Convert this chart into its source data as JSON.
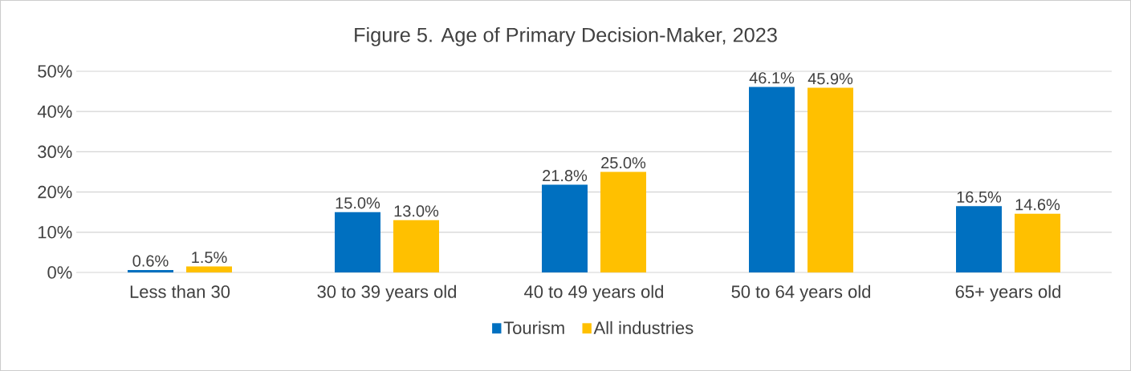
{
  "chart_data": {
    "type": "bar",
    "title": "Figure 5. Age of Primary Decision-Maker, 2023",
    "categories": [
      "Less than 30",
      "30 to 39 years old",
      "40 to 49 years old",
      "50 to 64 years old",
      "65+ years old"
    ],
    "series": [
      {
        "name": "Tourism",
        "color": "#0070c0",
        "values": [
          0.6,
          15.0,
          21.8,
          46.1,
          16.5
        ],
        "value_labels": [
          "0.6%",
          "15.0%",
          "21.8%",
          "46.1%",
          "16.5%"
        ]
      },
      {
        "name": "All industries",
        "color": "#ffc000",
        "values": [
          1.5,
          13.0,
          25.0,
          45.9,
          14.6
        ],
        "value_labels": [
          "1.5%",
          "13.0%",
          "25.0%",
          "45.9%",
          "14.6%"
        ]
      }
    ],
    "ylim": [
      0,
      50
    ],
    "yticks": [
      {
        "value": 0,
        "label": "0%"
      },
      {
        "value": 10,
        "label": "10%"
      },
      {
        "value": 20,
        "label": "20%"
      },
      {
        "value": 30,
        "label": "30%"
      },
      {
        "value": 40,
        "label": "40%"
      },
      {
        "value": 50,
        "label": "50%"
      }
    ],
    "grid": "y",
    "legend": "bottom"
  }
}
